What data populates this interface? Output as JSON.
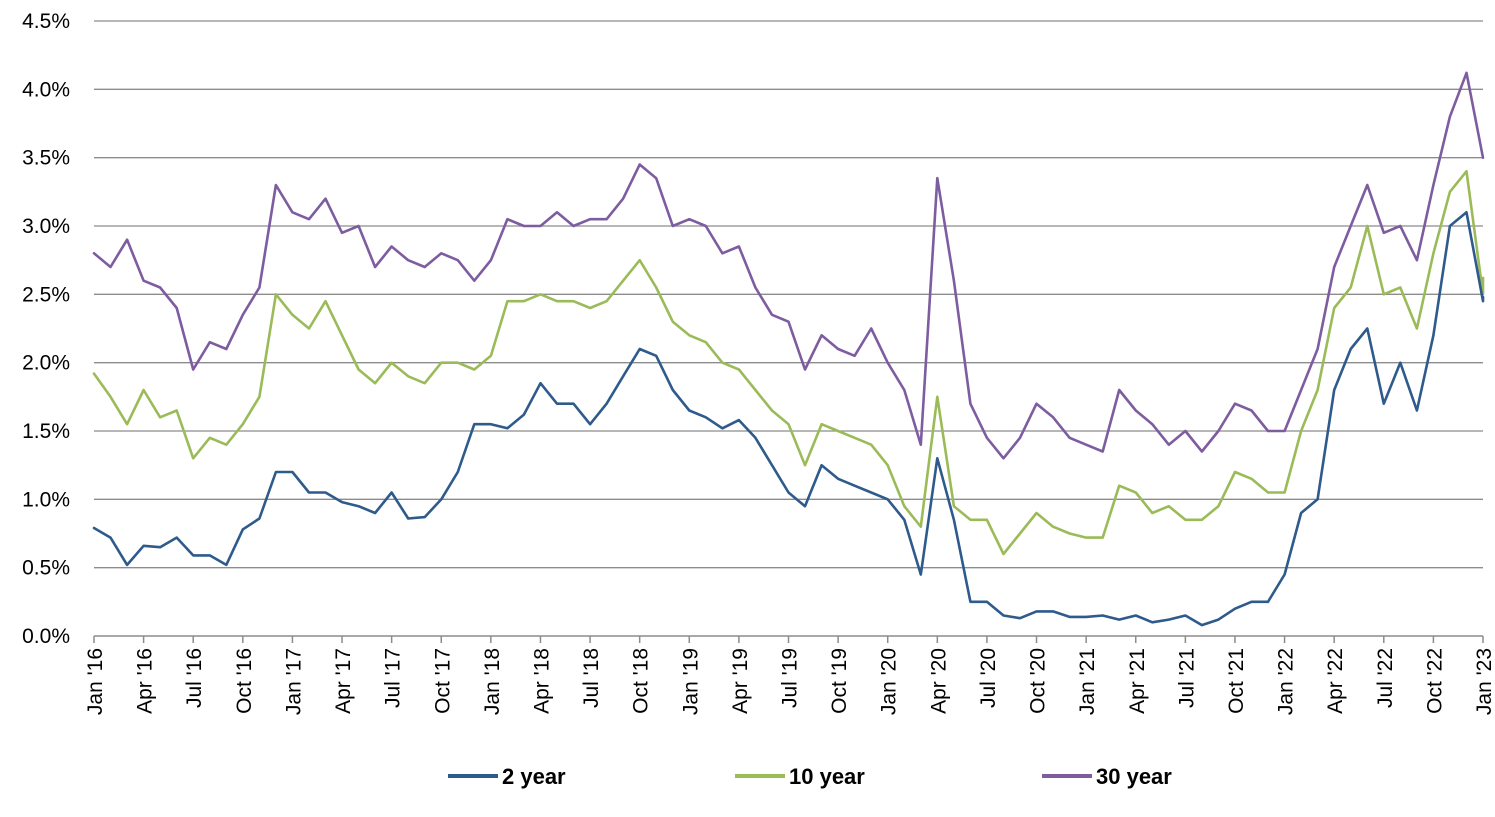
{
  "chart_data": {
    "type": "line",
    "title": "",
    "xlabel": "",
    "ylabel": "",
    "x_start": "2016-01",
    "x_end": "2023-01",
    "ylim": [
      0,
      4.5
    ],
    "y_ticks": [
      "0.0%",
      "0.5%",
      "1.0%",
      "1.5%",
      "2.0%",
      "2.5%",
      "3.0%",
      "3.5%",
      "4.0%",
      "4.5%"
    ],
    "y_tick_values": [
      0,
      0.5,
      1.0,
      1.5,
      2.0,
      2.5,
      3.0,
      3.5,
      4.0,
      4.5
    ],
    "x_ticks": [
      "Jan '16",
      "Apr '16",
      "Jul '16",
      "Oct '16",
      "Jan '17",
      "Apr '17",
      "Jul '17",
      "Oct '17",
      "Jan '18",
      "Apr '18",
      "Jul '18",
      "Oct '18",
      "Jan '19",
      "Apr '19",
      "Jul '19",
      "Oct '19",
      "Jan '20",
      "Apr '20",
      "Jul '20",
      "Oct '20",
      "Jan '21",
      "Apr '21",
      "Jul '21",
      "Oct '21",
      "Jan '22",
      "Apr '22",
      "Jul '22",
      "Oct '22",
      "Jan '23"
    ],
    "grid": true,
    "legend_position": "bottom",
    "series": [
      {
        "name": "2 year",
        "color": "#2e5a8c",
        "points": [
          [
            "2016-01",
            0.79
          ],
          [
            "2016-02",
            0.72
          ],
          [
            "2016-03",
            0.52
          ],
          [
            "2016-04",
            0.66
          ],
          [
            "2016-05",
            0.65
          ],
          [
            "2016-06",
            0.72
          ],
          [
            "2016-07",
            0.59
          ],
          [
            "2016-08",
            0.59
          ],
          [
            "2016-09",
            0.52
          ],
          [
            "2016-10",
            0.78
          ],
          [
            "2016-11",
            0.86
          ],
          [
            "2016-12",
            1.2
          ],
          [
            "2017-01",
            1.2
          ],
          [
            "2017-02",
            1.05
          ],
          [
            "2017-03",
            1.05
          ],
          [
            "2017-04",
            0.98
          ],
          [
            "2017-05",
            0.95
          ],
          [
            "2017-06",
            0.9
          ],
          [
            "2017-07",
            1.05
          ],
          [
            "2017-08",
            0.86
          ],
          [
            "2017-09",
            0.87
          ],
          [
            "2017-10",
            1.0
          ],
          [
            "2017-11",
            1.2
          ],
          [
            "2017-12",
            1.55
          ],
          [
            "2018-01",
            1.55
          ],
          [
            "2018-02",
            1.52
          ],
          [
            "2018-03",
            1.62
          ],
          [
            "2018-04",
            1.85
          ],
          [
            "2018-05",
            1.7
          ],
          [
            "2018-06",
            1.7
          ],
          [
            "2018-07",
            1.55
          ],
          [
            "2018-08",
            1.7
          ],
          [
            "2018-09",
            1.9
          ],
          [
            "2018-10",
            2.1
          ],
          [
            "2018-11",
            2.05
          ],
          [
            "2018-12",
            1.8
          ],
          [
            "2019-01",
            1.65
          ],
          [
            "2019-02",
            1.6
          ],
          [
            "2019-03",
            1.52
          ],
          [
            "2019-04",
            1.58
          ],
          [
            "2019-05",
            1.45
          ],
          [
            "2019-06",
            1.25
          ],
          [
            "2019-07",
            1.05
          ],
          [
            "2019-08",
            0.95
          ],
          [
            "2019-09",
            1.25
          ],
          [
            "2019-10",
            1.15
          ],
          [
            "2019-11",
            1.1
          ],
          [
            "2019-12",
            1.05
          ],
          [
            "2020-01",
            1.0
          ],
          [
            "2020-02",
            0.85
          ],
          [
            "2020-03",
            0.45
          ],
          [
            "2020-04",
            1.3
          ],
          [
            "2020-05",
            0.85
          ],
          [
            "2020-06",
            0.25
          ],
          [
            "2020-07",
            0.25
          ],
          [
            "2020-08",
            0.15
          ],
          [
            "2020-09",
            0.13
          ],
          [
            "2020-10",
            0.18
          ],
          [
            "2020-11",
            0.18
          ],
          [
            "2020-12",
            0.14
          ],
          [
            "2021-01",
            0.14
          ],
          [
            "2021-02",
            0.15
          ],
          [
            "2021-03",
            0.12
          ],
          [
            "2021-04",
            0.15
          ],
          [
            "2021-05",
            0.1
          ],
          [
            "2021-06",
            0.12
          ],
          [
            "2021-07",
            0.15
          ],
          [
            "2021-08",
            0.08
          ],
          [
            "2021-09",
            0.12
          ],
          [
            "2021-10",
            0.2
          ],
          [
            "2021-11",
            0.25
          ],
          [
            "2021-12",
            0.25
          ],
          [
            "2022-01",
            0.45
          ],
          [
            "2022-02",
            0.9
          ],
          [
            "2022-03",
            1.0
          ],
          [
            "2022-04",
            1.8
          ],
          [
            "2022-05",
            2.1
          ],
          [
            "2022-06",
            2.25
          ],
          [
            "2022-07",
            1.7
          ],
          [
            "2022-08",
            2.0
          ],
          [
            "2022-09",
            1.65
          ],
          [
            "2022-10",
            2.2
          ],
          [
            "2022-11",
            3.0
          ],
          [
            "2022-12",
            3.1
          ],
          [
            "2023-01",
            2.45
          ],
          [
            "2023-01",
            2.48
          ]
        ]
      },
      {
        "name": "10 year",
        "color": "#9bbb59",
        "points": [
          [
            "2016-01",
            1.92
          ],
          [
            "2016-02",
            1.75
          ],
          [
            "2016-03",
            1.55
          ],
          [
            "2016-04",
            1.8
          ],
          [
            "2016-05",
            1.6
          ],
          [
            "2016-06",
            1.65
          ],
          [
            "2016-07",
            1.3
          ],
          [
            "2016-08",
            1.45
          ],
          [
            "2016-09",
            1.4
          ],
          [
            "2016-10",
            1.55
          ],
          [
            "2016-11",
            1.75
          ],
          [
            "2016-12",
            2.5
          ],
          [
            "2017-01",
            2.35
          ],
          [
            "2017-02",
            2.25
          ],
          [
            "2017-03",
            2.45
          ],
          [
            "2017-04",
            2.2
          ],
          [
            "2017-05",
            1.95
          ],
          [
            "2017-06",
            1.85
          ],
          [
            "2017-07",
            2.0
          ],
          [
            "2017-08",
            1.9
          ],
          [
            "2017-09",
            1.85
          ],
          [
            "2017-10",
            2.0
          ],
          [
            "2017-11",
            2.0
          ],
          [
            "2017-12",
            1.95
          ],
          [
            "2018-01",
            2.05
          ],
          [
            "2018-02",
            2.45
          ],
          [
            "2018-03",
            2.45
          ],
          [
            "2018-04",
            2.5
          ],
          [
            "2018-05",
            2.45
          ],
          [
            "2018-06",
            2.45
          ],
          [
            "2018-07",
            2.4
          ],
          [
            "2018-08",
            2.45
          ],
          [
            "2018-09",
            2.6
          ],
          [
            "2018-10",
            2.75
          ],
          [
            "2018-11",
            2.55
          ],
          [
            "2018-12",
            2.3
          ],
          [
            "2019-01",
            2.2
          ],
          [
            "2019-02",
            2.15
          ],
          [
            "2019-03",
            2.0
          ],
          [
            "2019-04",
            1.95
          ],
          [
            "2019-05",
            1.8
          ],
          [
            "2019-06",
            1.65
          ],
          [
            "2019-07",
            1.55
          ],
          [
            "2019-08",
            1.25
          ],
          [
            "2019-09",
            1.55
          ],
          [
            "2019-10",
            1.5
          ],
          [
            "2019-11",
            1.45
          ],
          [
            "2019-12",
            1.4
          ],
          [
            "2020-01",
            1.25
          ],
          [
            "2020-02",
            0.95
          ],
          [
            "2020-03",
            0.8
          ],
          [
            "2020-04",
            1.75
          ],
          [
            "2020-05",
            0.95
          ],
          [
            "2020-06",
            0.85
          ],
          [
            "2020-07",
            0.85
          ],
          [
            "2020-08",
            0.6
          ],
          [
            "2020-09",
            0.75
          ],
          [
            "2020-10",
            0.9
          ],
          [
            "2020-11",
            0.8
          ],
          [
            "2020-12",
            0.75
          ],
          [
            "2021-01",
            0.72
          ],
          [
            "2021-02",
            0.72
          ],
          [
            "2021-03",
            1.1
          ],
          [
            "2021-04",
            1.05
          ],
          [
            "2021-05",
            0.9
          ],
          [
            "2021-06",
            0.95
          ],
          [
            "2021-07",
            0.85
          ],
          [
            "2021-08",
            0.85
          ],
          [
            "2021-09",
            0.95
          ],
          [
            "2021-10",
            1.2
          ],
          [
            "2021-11",
            1.15
          ],
          [
            "2021-12",
            1.05
          ],
          [
            "2022-01",
            1.05
          ],
          [
            "2022-02",
            1.5
          ],
          [
            "2022-03",
            1.8
          ],
          [
            "2022-04",
            2.4
          ],
          [
            "2022-05",
            2.55
          ],
          [
            "2022-06",
            3.0
          ],
          [
            "2022-07",
            2.5
          ],
          [
            "2022-08",
            2.55
          ],
          [
            "2022-09",
            2.25
          ],
          [
            "2022-10",
            2.8
          ],
          [
            "2022-11",
            3.25
          ],
          [
            "2022-12",
            3.4
          ],
          [
            "2023-01",
            2.5
          ],
          [
            "2023-01",
            2.62
          ]
        ]
      },
      {
        "name": "30 year",
        "color": "#7d5ca0",
        "points": [
          [
            "2016-01",
            2.8
          ],
          [
            "2016-02",
            2.7
          ],
          [
            "2016-03",
            2.9
          ],
          [
            "2016-04",
            2.6
          ],
          [
            "2016-05",
            2.55
          ],
          [
            "2016-06",
            2.4
          ],
          [
            "2016-07",
            1.95
          ],
          [
            "2016-08",
            2.15
          ],
          [
            "2016-09",
            2.1
          ],
          [
            "2016-10",
            2.35
          ],
          [
            "2016-11",
            2.55
          ],
          [
            "2016-12",
            3.3
          ],
          [
            "2017-01",
            3.1
          ],
          [
            "2017-02",
            3.05
          ],
          [
            "2017-03",
            3.2
          ],
          [
            "2017-04",
            2.95
          ],
          [
            "2017-05",
            3.0
          ],
          [
            "2017-06",
            2.7
          ],
          [
            "2017-07",
            2.85
          ],
          [
            "2017-08",
            2.75
          ],
          [
            "2017-09",
            2.7
          ],
          [
            "2017-10",
            2.8
          ],
          [
            "2017-11",
            2.75
          ],
          [
            "2017-12",
            2.6
          ],
          [
            "2018-01",
            2.75
          ],
          [
            "2018-02",
            3.05
          ],
          [
            "2018-03",
            3.0
          ],
          [
            "2018-04",
            3.0
          ],
          [
            "2018-05",
            3.1
          ],
          [
            "2018-06",
            3.0
          ],
          [
            "2018-07",
            3.05
          ],
          [
            "2018-08",
            3.05
          ],
          [
            "2018-09",
            3.2
          ],
          [
            "2018-10",
            3.45
          ],
          [
            "2018-11",
            3.35
          ],
          [
            "2018-12",
            3.0
          ],
          [
            "2019-01",
            3.05
          ],
          [
            "2019-02",
            3.0
          ],
          [
            "2019-03",
            2.8
          ],
          [
            "2019-04",
            2.85
          ],
          [
            "2019-05",
            2.55
          ],
          [
            "2019-06",
            2.35
          ],
          [
            "2019-07",
            2.3
          ],
          [
            "2019-08",
            1.95
          ],
          [
            "2019-09",
            2.2
          ],
          [
            "2019-10",
            2.1
          ],
          [
            "2019-11",
            2.05
          ],
          [
            "2019-12",
            2.25
          ],
          [
            "2020-01",
            2.0
          ],
          [
            "2020-02",
            1.8
          ],
          [
            "2020-03",
            1.4
          ],
          [
            "2020-04",
            3.35
          ],
          [
            "2020-05",
            2.6
          ],
          [
            "2020-06",
            1.7
          ],
          [
            "2020-07",
            1.45
          ],
          [
            "2020-08",
            1.3
          ],
          [
            "2020-09",
            1.45
          ],
          [
            "2020-10",
            1.7
          ],
          [
            "2020-11",
            1.6
          ],
          [
            "2020-12",
            1.45
          ],
          [
            "2021-01",
            1.4
          ],
          [
            "2021-02",
            1.35
          ],
          [
            "2021-03",
            1.8
          ],
          [
            "2021-04",
            1.65
          ],
          [
            "2021-05",
            1.55
          ],
          [
            "2021-06",
            1.4
          ],
          [
            "2021-07",
            1.5
          ],
          [
            "2021-08",
            1.35
          ],
          [
            "2021-09",
            1.5
          ],
          [
            "2021-10",
            1.7
          ],
          [
            "2021-11",
            1.65
          ],
          [
            "2021-12",
            1.5
          ],
          [
            "2022-01",
            1.5
          ],
          [
            "2022-02",
            1.8
          ],
          [
            "2022-03",
            2.1
          ],
          [
            "2022-04",
            2.7
          ],
          [
            "2022-05",
            3.0
          ],
          [
            "2022-06",
            3.3
          ],
          [
            "2022-07",
            2.95
          ],
          [
            "2022-08",
            3.0
          ],
          [
            "2022-09",
            2.75
          ],
          [
            "2022-10",
            3.3
          ],
          [
            "2022-11",
            3.8
          ],
          [
            "2022-12",
            4.12
          ],
          [
            "2023-01",
            3.5
          ],
          [
            "2023-01",
            3.5
          ]
        ]
      }
    ]
  }
}
